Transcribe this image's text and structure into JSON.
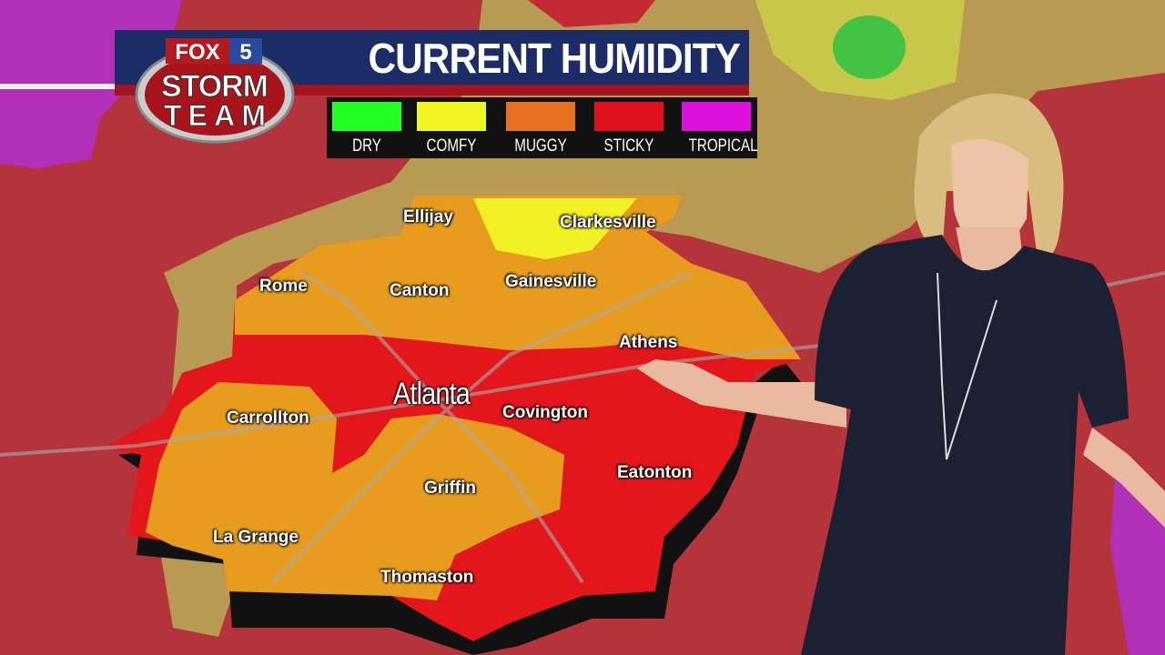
{
  "broadcast": {
    "logo": {
      "network": "FOX",
      "channel": "5",
      "line1": "STORM",
      "line2": "TEAM"
    },
    "title": "CURRENT HUMIDITY"
  },
  "legend": {
    "items": [
      {
        "label": "DRY",
        "color": "#22ff22"
      },
      {
        "label": "COMFY",
        "color": "#eef522"
      },
      {
        "label": "MUGGY",
        "color": "#e5701f"
      },
      {
        "label": "STICKY",
        "color": "#e0101e"
      },
      {
        "label": "TROPICAL",
        "color": "#dd10dd"
      }
    ]
  },
  "map": {
    "colors": {
      "background": "#b5333a",
      "muggy_fill": "#e79b1f",
      "sticky_fill": "#e3161b",
      "comfy_fill": "#f1f124",
      "transition": "#b99a55"
    },
    "cities": [
      {
        "name": "Ellijay"
      },
      {
        "name": "Clarkesville"
      },
      {
        "name": "Rome"
      },
      {
        "name": "Canton"
      },
      {
        "name": "Gainesville"
      },
      {
        "name": "Athens"
      },
      {
        "name": "Atlanta"
      },
      {
        "name": "Carrollton"
      },
      {
        "name": "Covington"
      },
      {
        "name": "Eatonton"
      },
      {
        "name": "Griffin"
      },
      {
        "name": "La Grange"
      },
      {
        "name": "Thomaston"
      }
    ]
  }
}
